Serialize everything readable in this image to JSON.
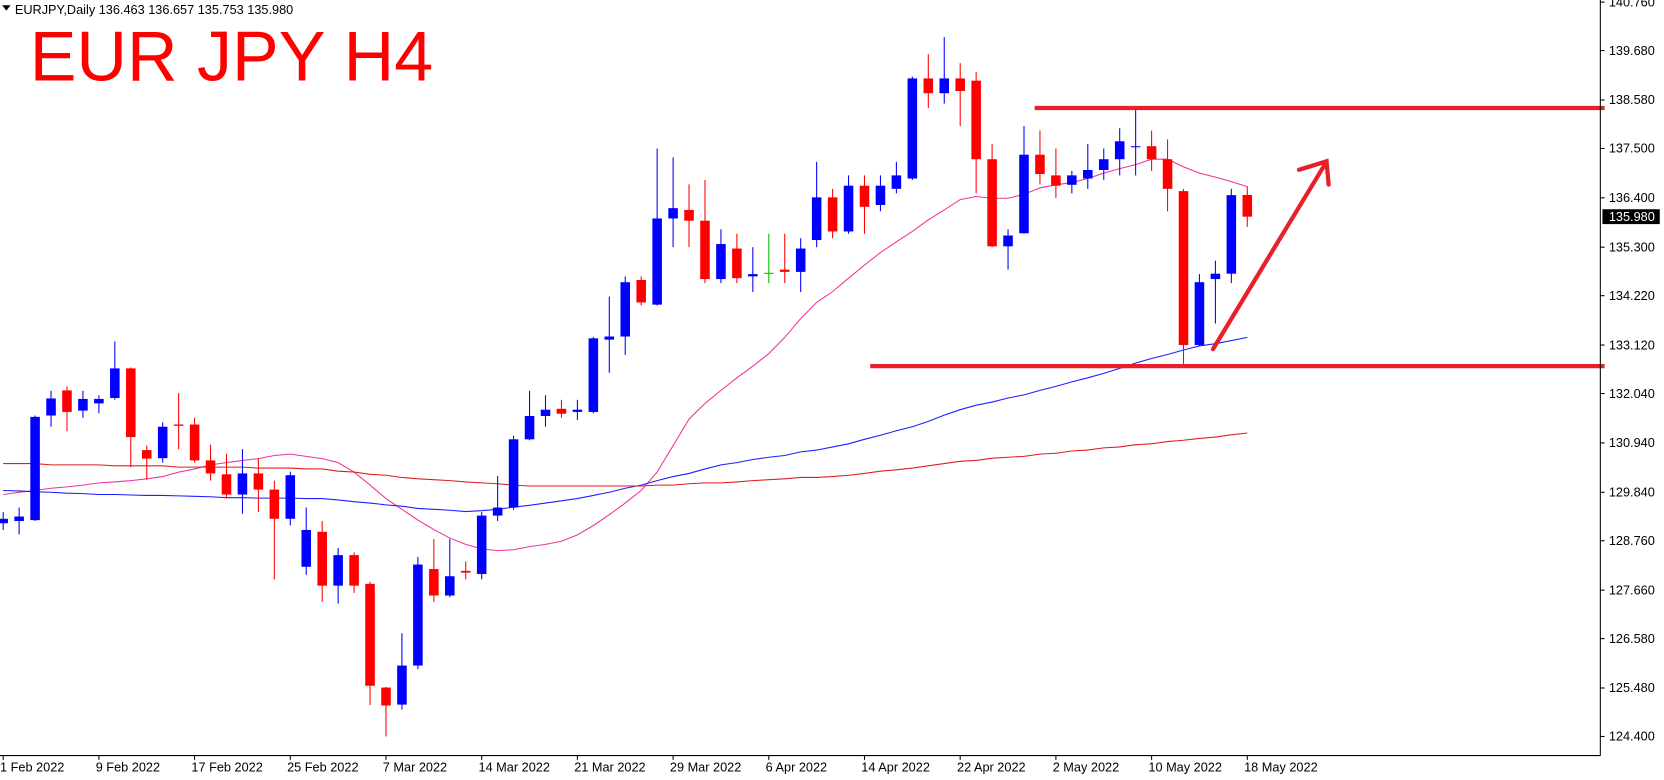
{
  "chart_data": {
    "type": "candlestick",
    "header": "EURJPY,Daily  136.463 136.657 135.753 135.980",
    "title": "EUR JPY H4",
    "categories": [
      "1 Feb 2022",
      null,
      null,
      null,
      null,
      null,
      "9 Feb 2022",
      null,
      null,
      null,
      null,
      null,
      "17 Feb 2022",
      null,
      null,
      null,
      null,
      null,
      "25 Feb 2022",
      null,
      null,
      null,
      null,
      null,
      "7 Mar 2022",
      null,
      null,
      null,
      null,
      null,
      "14 Mar 2022",
      null,
      null,
      null,
      null,
      null,
      "21 Mar 2022",
      null,
      null,
      null,
      null,
      null,
      "29 Mar 2022",
      null,
      null,
      null,
      null,
      null,
      "6 Apr 2022",
      null,
      null,
      null,
      null,
      null,
      "14 Apr 2022",
      null,
      null,
      null,
      null,
      null,
      "22 Apr 2022",
      null,
      null,
      null,
      null,
      null,
      "2 May 2022",
      null,
      null,
      null,
      null,
      null,
      "10 May 2022",
      null,
      null,
      null,
      null,
      null,
      "18 May 2022"
    ],
    "open": [
      129.15,
      129.2,
      129.22,
      131.55,
      132.11,
      131.66,
      131.82,
      131.94,
      132.6,
      130.78,
      130.6,
      131.35,
      131.35,
      130.55,
      130.24,
      129.79,
      130.26,
      129.9,
      129.25,
      128.18,
      128.96,
      127.76,
      128.44,
      127.8,
      125.49,
      125.11,
      125.98,
      128.13,
      127.54,
      128.09,
      128.02,
      129.32,
      129.5,
      131.02,
      131.54,
      131.7,
      131.63,
      131.63,
      133.24,
      133.31,
      134.57,
      134.02,
      135.94,
      136.13,
      135.89,
      134.59,
      135.27,
      134.65,
      134.73,
      134.8,
      134.75,
      135.46,
      136.41,
      135.65,
      136.67,
      136.24,
      136.6,
      136.83,
      139.06,
      138.73,
      139.06,
      139.01,
      137.26,
      135.32,
      135.61,
      137.36,
      136.9,
      136.69,
      136.83,
      137.02,
      137.26,
      137.53,
      137.55,
      137.26,
      136.55,
      133.12,
      134.59,
      134.71,
      136.463
    ],
    "high": [
      129.4,
      129.5,
      131.55,
      132.1,
      132.2,
      132.1,
      132.0,
      133.2,
      132.62,
      130.88,
      131.4,
      132.05,
      131.5,
      130.9,
      130.7,
      130.8,
      130.6,
      130.1,
      130.3,
      129.5,
      129.2,
      128.6,
      128.5,
      127.85,
      125.5,
      126.7,
      128.4,
      128.8,
      128.8,
      128.3,
      129.4,
      130.2,
      131.1,
      132.1,
      132.0,
      131.9,
      131.9,
      133.3,
      134.2,
      134.65,
      134.65,
      137.5,
      137.3,
      136.7,
      136.8,
      135.7,
      135.6,
      135.3,
      135.6,
      135.6,
      135.5,
      137.2,
      136.6,
      136.9,
      136.9,
      136.9,
      137.2,
      139.1,
      139.6,
      139.98,
      139.4,
      139.2,
      137.6,
      135.7,
      138.0,
      137.9,
      137.5,
      137.0,
      137.6,
      137.5,
      137.95,
      138.4,
      137.9,
      137.7,
      136.6,
      134.7,
      135.0,
      136.6,
      136.657
    ],
    "low": [
      129.0,
      128.9,
      129.2,
      131.3,
      131.2,
      131.5,
      131.6,
      131.9,
      130.4,
      130.12,
      130.5,
      130.8,
      130.5,
      130.1,
      129.7,
      129.36,
      129.4,
      127.9,
      129.1,
      128.0,
      127.4,
      127.36,
      127.6,
      125.1,
      124.4,
      125.0,
      125.9,
      127.4,
      127.5,
      127.9,
      127.9,
      129.2,
      129.45,
      131.0,
      131.3,
      131.5,
      131.45,
      131.6,
      132.5,
      132.9,
      134.0,
      134.0,
      135.3,
      135.3,
      134.5,
      134.5,
      134.5,
      134.3,
      134.5,
      134.5,
      134.3,
      135.3,
      135.5,
      135.6,
      135.6,
      136.1,
      136.5,
      136.8,
      138.4,
      138.5,
      138.0,
      136.5,
      135.3,
      134.8,
      135.6,
      136.7,
      136.4,
      136.5,
      136.6,
      136.8,
      136.9,
      136.9,
      137.0,
      136.1,
      132.7,
      133.1,
      133.6,
      134.5,
      135.753
    ],
    "close": [
      129.25,
      129.3,
      131.52,
      131.93,
      131.63,
      131.92,
      131.92,
      132.6,
      131.07,
      130.59,
      131.3,
      131.32,
      130.55,
      130.26,
      129.79,
      130.26,
      129.9,
      129.25,
      130.22,
      129.0,
      127.76,
      128.44,
      127.76,
      125.53,
      125.09,
      125.98,
      128.23,
      127.54,
      127.97,
      128.05,
      129.32,
      129.5,
      131.02,
      131.54,
      131.68,
      131.59,
      131.68,
      133.27,
      133.31,
      134.52,
      134.07,
      135.94,
      136.17,
      135.89,
      134.59,
      135.37,
      134.61,
      134.7,
      134.73,
      134.75,
      135.27,
      136.41,
      135.65,
      136.67,
      136.2,
      136.67,
      136.9,
      139.06,
      138.73,
      139.06,
      138.78,
      137.26,
      135.32,
      135.56,
      137.36,
      136.93,
      136.67,
      136.9,
      137.02,
      137.26,
      137.66,
      137.55,
      137.26,
      136.6,
      133.12,
      134.52,
      134.71,
      136.46,
      135.98
    ],
    "up_color": "#0000ff",
    "down_color": "#ff0000",
    "doji_color": "#00c000",
    "lines": [
      {
        "color": "#f0329b",
        "values": [
          129.79,
          129.84,
          129.88,
          129.93,
          129.96,
          130.0,
          130.05,
          130.07,
          130.1,
          130.14,
          130.19,
          130.29,
          130.36,
          130.45,
          130.5,
          130.55,
          130.59,
          130.66,
          130.69,
          130.64,
          130.59,
          130.5,
          130.29,
          130.0,
          129.7,
          129.46,
          129.22,
          129.01,
          128.82,
          128.68,
          128.58,
          128.54,
          128.56,
          128.63,
          128.68,
          128.75,
          128.89,
          129.1,
          129.34,
          129.6,
          129.88,
          130.29,
          130.88,
          131.47,
          131.82,
          132.11,
          132.39,
          132.65,
          132.93,
          133.29,
          133.71,
          134.07,
          134.31,
          134.61,
          134.9,
          135.18,
          135.42,
          135.65,
          135.91,
          136.13,
          136.36,
          136.43,
          136.39,
          136.39,
          136.48,
          136.62,
          136.69,
          136.74,
          136.83,
          136.95,
          137.05,
          137.14,
          137.26,
          137.26,
          137.09,
          136.95,
          136.86,
          136.76,
          136.65
        ]
      },
      {
        "color": "#1e1eff",
        "values": [
          129.88,
          129.87,
          129.85,
          129.84,
          129.82,
          129.81,
          129.79,
          129.79,
          129.78,
          129.77,
          129.77,
          129.76,
          129.75,
          129.74,
          129.72,
          129.72,
          129.71,
          129.71,
          129.71,
          129.7,
          129.7,
          129.67,
          129.63,
          129.6,
          129.56,
          129.53,
          129.48,
          129.46,
          129.44,
          129.41,
          129.43,
          129.46,
          129.51,
          129.55,
          129.6,
          129.65,
          129.7,
          129.77,
          129.84,
          129.93,
          130.0,
          130.1,
          130.19,
          130.26,
          130.36,
          130.45,
          130.5,
          130.57,
          130.62,
          130.66,
          130.74,
          130.78,
          130.85,
          130.92,
          131.02,
          131.11,
          131.21,
          131.3,
          131.42,
          131.56,
          131.68,
          131.78,
          131.85,
          131.94,
          132.01,
          132.11,
          132.2,
          132.3,
          132.39,
          132.49,
          132.6,
          132.72,
          132.82,
          132.91,
          133.01,
          133.1,
          133.15,
          133.22,
          133.29
        ]
      },
      {
        "color": "#e01e1e",
        "values": [
          130.48,
          130.48,
          130.48,
          130.45,
          130.45,
          130.45,
          130.45,
          130.43,
          130.43,
          130.43,
          130.43,
          130.4,
          130.4,
          130.4,
          130.4,
          130.4,
          130.38,
          130.38,
          130.38,
          130.36,
          130.36,
          130.31,
          130.29,
          130.24,
          130.22,
          130.17,
          130.14,
          130.12,
          130.1,
          130.07,
          130.05,
          130.03,
          130.0,
          129.98,
          129.98,
          129.98,
          129.98,
          129.98,
          129.98,
          129.98,
          129.98,
          130.0,
          130.0,
          130.03,
          130.05,
          130.05,
          130.07,
          130.1,
          130.12,
          130.14,
          130.17,
          130.17,
          130.19,
          130.22,
          130.26,
          130.31,
          130.34,
          130.38,
          130.43,
          130.48,
          130.53,
          130.55,
          130.6,
          130.62,
          130.64,
          130.69,
          130.71,
          130.76,
          130.78,
          130.83,
          130.85,
          130.9,
          130.92,
          130.97,
          131.0,
          131.04,
          131.07,
          131.12,
          131.16
        ]
      }
    ],
    "levels": [
      138.4,
      132.65
    ],
    "level_color": "#e8202a",
    "last_price": {
      "value": 135.98,
      "label": "135.980"
    },
    "ylim": [
      123.974,
      140.807
    ],
    "yticks": [
      {
        "value": 140.76,
        "label": "140.760"
      },
      {
        "value": 139.68,
        "label": "139.680"
      },
      {
        "value": 138.58,
        "label": "138.580"
      },
      {
        "value": 137.5,
        "label": "137.500"
      },
      {
        "value": 136.4,
        "label": "136.400"
      },
      {
        "value": 135.3,
        "label": "135.300"
      },
      {
        "value": 134.22,
        "label": "134.220"
      },
      {
        "value": 133.12,
        "label": "133.120"
      },
      {
        "value": 132.04,
        "label": "132.040"
      },
      {
        "value": 130.94,
        "label": "130.940"
      },
      {
        "value": 129.84,
        "label": "129.840"
      },
      {
        "value": 128.76,
        "label": "128.760"
      },
      {
        "value": 127.66,
        "label": "127.660"
      },
      {
        "value": 126.58,
        "label": "126.580"
      },
      {
        "value": 125.48,
        "label": "125.480"
      },
      {
        "value": 124.4,
        "label": "124.400"
      }
    ]
  }
}
